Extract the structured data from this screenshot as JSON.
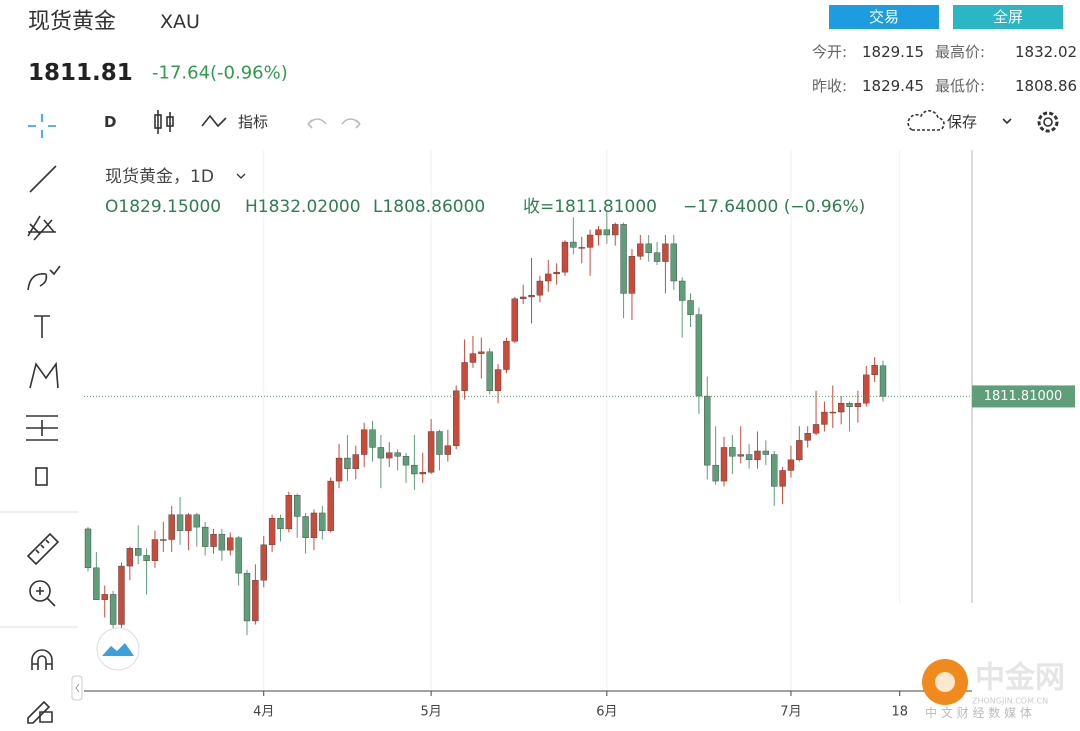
{
  "header": {
    "name": "现货黄金",
    "symbol": "XAU",
    "price": "1811.81",
    "change": "-17.64(-0.96%)",
    "buttons": [
      "交易",
      "全屏"
    ],
    "stats": [
      {
        "label": "今开:",
        "value": "1829.15"
      },
      {
        "label": "最高价:",
        "value": "1832.02"
      },
      {
        "label": "昨收:",
        "value": "1829.45"
      },
      {
        "label": "最低价:",
        "value": "1808.86"
      }
    ]
  },
  "toolbar": {
    "interval": "D",
    "indicators": "指标",
    "save": "保存"
  },
  "chart_data": {
    "type": "candlestick",
    "legend_title": "现货黄金，1D",
    "legend_values": [
      "O1829.15000",
      "H1832.02000",
      "L1808.86000",
      "收=1811.81000",
      "−17.64000 (−0.96%)"
    ],
    "categories": [
      null,
      null,
      null,
      null,
      null,
      null,
      null,
      null,
      null,
      null,
      null,
      null,
      null,
      null,
      null,
      null,
      null,
      null,
      null,
      null,
      null,
      "4月",
      null,
      null,
      null,
      null,
      null,
      null,
      null,
      null,
      null,
      null,
      null,
      null,
      null,
      null,
      null,
      null,
      null,
      null,
      null,
      "5月",
      null,
      null,
      null,
      null,
      null,
      null,
      null,
      null,
      null,
      null,
      null,
      null,
      null,
      null,
      null,
      null,
      null,
      null,
      null,
      null,
      "6月",
      null,
      null,
      null,
      null,
      null,
      null,
      null,
      null,
      null,
      null,
      null,
      null,
      null,
      null,
      null,
      null,
      null,
      null,
      null,
      null,
      null,
      "7月",
      null,
      null,
      null,
      null,
      null,
      null,
      null,
      null,
      null,
      null,
      null,
      null,
      "18"
    ],
    "open": [
      1737,
      1715,
      1697,
      1700,
      1683,
      1716,
      1726,
      1722,
      1719,
      1731,
      1731,
      1745,
      1736,
      1745,
      1738,
      1727,
      1734,
      1725,
      1732,
      1712,
      1685,
      1708,
      1728,
      1743,
      1737,
      1756,
      1744,
      1732,
      1746,
      1736,
      1764,
      1777,
      1771,
      1779,
      1793,
      1783,
      1777,
      1780,
      1778,
      1773,
      1768,
      1769,
      1792,
      1779,
      1784,
      1815,
      1831,
      1836,
      1837,
      1815,
      1827,
      1843,
      1867,
      1868,
      1869,
      1877,
      1881,
      1882,
      1899,
      1896,
      1896,
      1903,
      1906,
      1903,
      1909,
      1870,
      1891,
      1898,
      1893,
      1888,
      1898,
      1877,
      1866,
      1858,
      1812,
      1773,
      1764,
      1783,
      1778,
      1779,
      1776,
      1781,
      1779,
      1761,
      1770,
      1776,
      1787,
      1791,
      1796,
      1803,
      1803,
      1808,
      1806,
      1808,
      1824,
      1829.15,
      null,
      null
    ],
    "high": [
      1738,
      1724,
      1705,
      1702,
      1718,
      1727,
      1739,
      1726,
      1736,
      1741,
      1750,
      1755,
      1746,
      1746,
      1741,
      1737,
      1737,
      1735,
      1733,
      1714,
      1717,
      1733,
      1745,
      1745,
      1758,
      1757,
      1746,
      1748,
      1750,
      1766,
      1785,
      1790,
      1784,
      1797,
      1798,
      1790,
      1786,
      1782,
      1780,
      1790,
      1780,
      1799,
      1793,
      1793,
      1818,
      1844,
      1846,
      1845,
      1839,
      1830,
      1845,
      1868,
      1875,
      1890,
      1880,
      1889,
      1887,
      1900,
      1913,
      1902,
      1906,
      1908,
      1916,
      1910,
      1910,
      1895,
      1903,
      1903,
      1899,
      1903,
      1903,
      1879,
      1870,
      1862,
      1823,
      1795,
      1789,
      1790,
      1795,
      1785,
      1792,
      1787,
      1781,
      1772,
      1784,
      1795,
      1795,
      1815,
      1809,
      1818,
      1812,
      1809,
      1815,
      1829,
      1834,
      1832.02,
      null,
      null
    ],
    "low": [
      1713,
      1697,
      1687,
      1677,
      1681,
      1708,
      1717,
      1700,
      1715,
      1724,
      1724,
      1728,
      1725,
      1727,
      1722,
      1723,
      1719,
      1722,
      1705,
      1677,
      1683,
      1704,
      1724,
      1730,
      1735,
      1732,
      1723,
      1725,
      1731,
      1735,
      1760,
      1764,
      1765,
      1772,
      1775,
      1760,
      1772,
      1770,
      1763,
      1759,
      1763,
      1768,
      1770,
      1775,
      1782,
      1810,
      1828,
      1822,
      1813,
      1808,
      1825,
      1842,
      1864,
      1853,
      1865,
      1871,
      1875,
      1880,
      1892,
      1887,
      1880,
      1897,
      1898,
      1897,
      1856,
      1855,
      1889,
      1888,
      1886,
      1870,
      1872,
      1845,
      1851,
      1802,
      1765,
      1762,
      1761,
      1768,
      1774,
      1771,
      1771,
      1773,
      1750,
      1751,
      1766,
      1775,
      1783,
      1790,
      1792,
      1794,
      1796,
      1792,
      1797,
      1806,
      1820,
      1808.86,
      null,
      null
    ],
    "close": [
      1715,
      1697,
      1700,
      1683,
      1716,
      1726,
      1722,
      1719,
      1731,
      1731,
      1745,
      1736,
      1745,
      1738,
      1727,
      1734,
      1725,
      1732,
      1712,
      1685,
      1708,
      1728,
      1743,
      1737,
      1756,
      1744,
      1732,
      1746,
      1736,
      1764,
      1777,
      1771,
      1779,
      1793,
      1783,
      1777,
      1780,
      1778,
      1773,
      1768,
      1769,
      1792,
      1779,
      1784,
      1815,
      1831,
      1836,
      1837,
      1815,
      1827,
      1843,
      1867,
      1868,
      1869,
      1877,
      1881,
      1882,
      1899,
      1896,
      1896,
      1903,
      1906,
      1903,
      1909,
      1870,
      1891,
      1898,
      1893,
      1888,
      1898,
      1877,
      1866,
      1858,
      1812,
      1773,
      1764,
      1783,
      1778,
      1779,
      1776,
      1781,
      1779,
      1761,
      1770,
      1776,
      1787,
      1791,
      1796,
      1803,
      1803,
      1808,
      1806,
      1808,
      1824,
      1829.45,
      1811.81,
      null,
      null
    ],
    "up_color": "#c84b3c",
    "down_color": "#5e9e78",
    "ylim": [
      1646,
      1951
    ],
    "last_price": {
      "value": 1811.81,
      "label": "1811.81000"
    }
  },
  "watermark": {
    "brand": "中金网",
    "domain": "ZHONGJIN.COM.CN",
    "slogan": "中 文 财 经 数 媒 体"
  }
}
